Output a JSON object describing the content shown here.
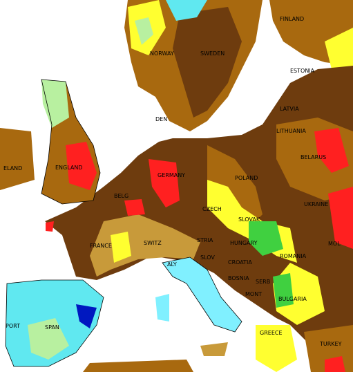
{
  "labels": [
    "FINLAND",
    "NORWAY",
    "SWEDEN",
    "ESTONIA",
    "LATVIA",
    "DEN",
    "LITHUANIA",
    "BELARUS",
    "ELAND",
    "ENGLAND",
    "GERMANY",
    "POLAND",
    "BELG",
    "CZECH",
    "SLOVAK",
    "UKRAINE",
    "FRANCE",
    "SWITZ",
    "STRIA",
    "HUNGARY",
    "MOL",
    "ROMANIA",
    "SLOV",
    "CROATIA",
    "BOSNIA",
    "SERB",
    "MONT",
    "BULGARIA",
    "ALY",
    "SPAN",
    "PORT",
    "GREECE",
    "TURKEY"
  ]
}
